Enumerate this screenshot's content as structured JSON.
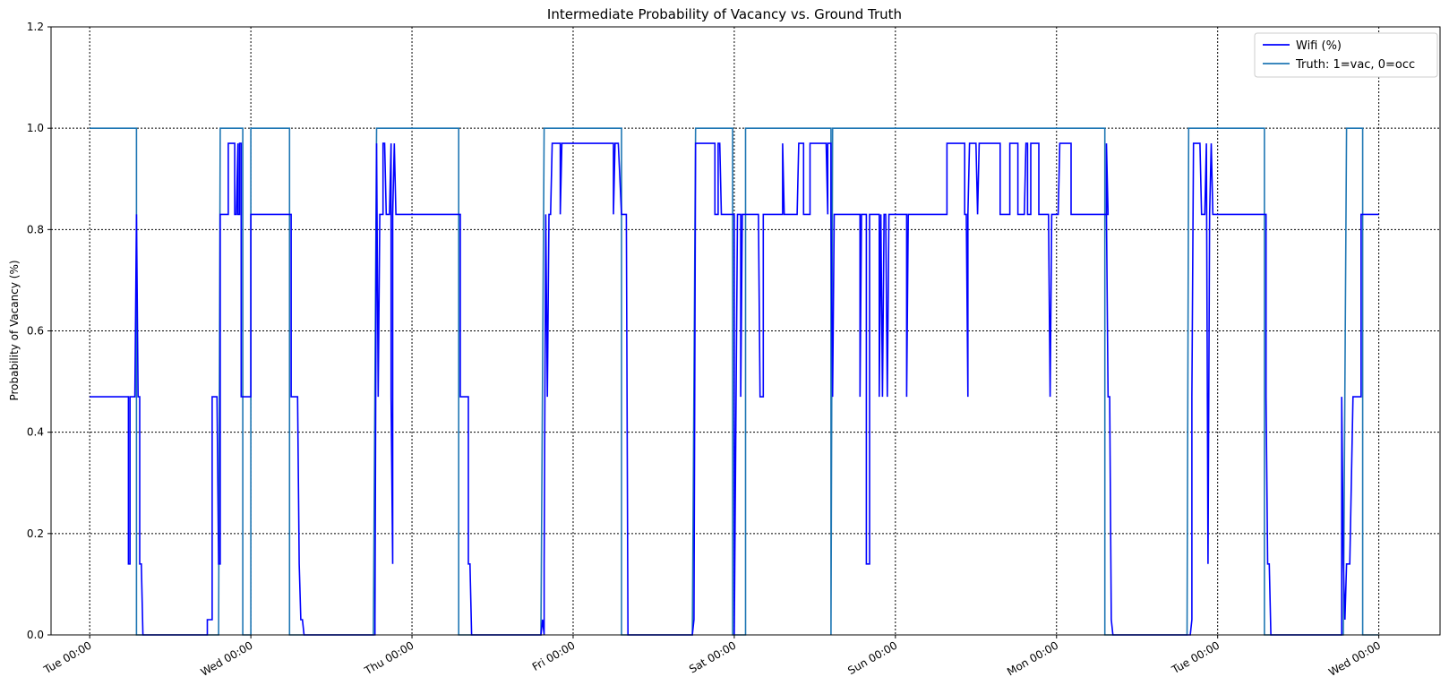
{
  "chart_data": {
    "type": "line",
    "title": "Intermediate Probability of Vacancy vs. Ground Truth",
    "ylabel": "Probability of Vacancy (%)",
    "xlabel": "",
    "ylim": [
      0,
      1.2
    ],
    "yticks": [
      "0.0",
      "0.2",
      "0.4",
      "0.6",
      "0.8",
      "1.0",
      "1.2"
    ],
    "x_unit": "day",
    "xlim": [
      -0.24,
      8.38
    ],
    "xticks": [
      {
        "x": 0,
        "label": "Tue 00:00"
      },
      {
        "x": 1,
        "label": "Wed 00:00"
      },
      {
        "x": 2,
        "label": "Thu 00:00"
      },
      {
        "x": 3,
        "label": "Fri 00:00"
      },
      {
        "x": 4,
        "label": "Sat 00:00"
      },
      {
        "x": 5,
        "label": "Sun 00:00"
      },
      {
        "x": 6,
        "label": "Mon 00:00"
      },
      {
        "x": 7,
        "label": "Tue 00:00"
      },
      {
        "x": 8,
        "label": "Wed 00:00"
      }
    ],
    "grid": true,
    "legend_position": "top-right",
    "series": [
      {
        "name": "Wifi (%)",
        "color": "#0000ff",
        "points": [
          [
            0.0,
            0.47
          ],
          [
            0.24,
            0.47
          ],
          [
            0.24,
            0.14
          ],
          [
            0.25,
            0.14
          ],
          [
            0.25,
            0.47
          ],
          [
            0.28,
            0.47
          ],
          [
            0.29,
            0.83
          ],
          [
            0.3,
            0.47
          ],
          [
            0.31,
            0.47
          ],
          [
            0.31,
            0.14
          ],
          [
            0.32,
            0.14
          ],
          [
            0.33,
            0.0
          ],
          [
            0.72,
            0.0
          ],
          [
            0.73,
            0.0
          ],
          [
            0.73,
            0.03
          ],
          [
            0.76,
            0.03
          ],
          [
            0.76,
            0.47
          ],
          [
            0.79,
            0.47
          ],
          [
            0.8,
            0.14
          ],
          [
            0.81,
            0.14
          ],
          [
            0.81,
            0.83
          ],
          [
            0.86,
            0.83
          ],
          [
            0.86,
            0.97
          ],
          [
            0.9,
            0.97
          ],
          [
            0.9,
            0.83
          ],
          [
            0.91,
            0.83
          ],
          [
            0.92,
            0.97
          ],
          [
            0.92,
            0.83
          ],
          [
            0.93,
            0.83
          ],
          [
            0.93,
            0.97
          ],
          [
            0.94,
            0.97
          ],
          [
            0.94,
            0.47
          ],
          [
            1.0,
            0.47
          ],
          [
            1.0,
            0.83
          ],
          [
            1.25,
            0.83
          ],
          [
            1.25,
            0.47
          ],
          [
            1.29,
            0.47
          ],
          [
            1.3,
            0.14
          ],
          [
            1.31,
            0.03
          ],
          [
            1.32,
            0.03
          ],
          [
            1.33,
            0.0
          ],
          [
            1.77,
            0.0
          ],
          [
            1.77,
            0.03
          ],
          [
            1.78,
            0.97
          ],
          [
            1.79,
            0.47
          ],
          [
            1.8,
            0.83
          ],
          [
            1.82,
            0.83
          ],
          [
            1.82,
            0.97
          ],
          [
            1.83,
            0.97
          ],
          [
            1.84,
            0.83
          ],
          [
            1.86,
            0.83
          ],
          [
            1.87,
            0.97
          ],
          [
            1.87,
            0.47
          ],
          [
            1.88,
            0.14
          ],
          [
            1.88,
            0.83
          ],
          [
            1.89,
            0.97
          ],
          [
            1.9,
            0.83
          ],
          [
            2.3,
            0.83
          ],
          [
            2.3,
            0.47
          ],
          [
            2.35,
            0.47
          ],
          [
            2.35,
            0.14
          ],
          [
            2.36,
            0.14
          ],
          [
            2.37,
            0.0
          ],
          [
            2.8,
            0.0
          ],
          [
            2.81,
            0.03
          ],
          [
            2.82,
            0.0
          ],
          [
            2.82,
            0.14
          ],
          [
            2.83,
            0.83
          ],
          [
            2.84,
            0.47
          ],
          [
            2.85,
            0.83
          ],
          [
            2.86,
            0.83
          ],
          [
            2.87,
            0.97
          ],
          [
            2.92,
            0.97
          ],
          [
            2.92,
            0.83
          ],
          [
            2.93,
            0.97
          ],
          [
            3.25,
            0.97
          ],
          [
            3.25,
            0.83
          ],
          [
            3.26,
            0.97
          ],
          [
            3.28,
            0.97
          ],
          [
            3.3,
            0.83
          ],
          [
            3.33,
            0.83
          ],
          [
            3.34,
            0.0
          ],
          [
            3.74,
            0.0
          ],
          [
            3.75,
            0.03
          ],
          [
            3.76,
            0.97
          ],
          [
            3.88,
            0.97
          ],
          [
            3.88,
            0.83
          ],
          [
            3.9,
            0.83
          ],
          [
            3.9,
            0.97
          ],
          [
            3.91,
            0.97
          ],
          [
            3.92,
            0.83
          ],
          [
            4.0,
            0.83
          ],
          [
            4.0,
            0.0
          ],
          [
            4.02,
            0.83
          ],
          [
            4.04,
            0.83
          ],
          [
            4.04,
            0.47
          ],
          [
            4.05,
            0.83
          ],
          [
            4.15,
            0.83
          ],
          [
            4.16,
            0.47
          ],
          [
            4.18,
            0.47
          ],
          [
            4.18,
            0.83
          ],
          [
            4.3,
            0.83
          ],
          [
            4.3,
            0.97
          ],
          [
            4.31,
            0.83
          ],
          [
            4.39,
            0.83
          ],
          [
            4.4,
            0.97
          ],
          [
            4.43,
            0.97
          ],
          [
            4.43,
            0.83
          ],
          [
            4.47,
            0.83
          ],
          [
            4.47,
            0.97
          ],
          [
            4.57,
            0.97
          ],
          [
            4.58,
            0.83
          ],
          [
            4.58,
            0.97
          ],
          [
            4.6,
            0.97
          ],
          [
            4.6,
            0.83
          ],
          [
            4.61,
            0.47
          ],
          [
            4.62,
            0.83
          ],
          [
            4.78,
            0.83
          ],
          [
            4.78,
            0.47
          ],
          [
            4.79,
            0.83
          ],
          [
            4.82,
            0.83
          ],
          [
            4.82,
            0.14
          ],
          [
            4.84,
            0.14
          ],
          [
            4.84,
            0.83
          ],
          [
            4.9,
            0.83
          ],
          [
            4.9,
            0.47
          ],
          [
            4.91,
            0.83
          ],
          [
            4.92,
            0.47
          ],
          [
            4.93,
            0.83
          ],
          [
            4.94,
            0.83
          ],
          [
            4.95,
            0.47
          ],
          [
            4.96,
            0.83
          ],
          [
            5.07,
            0.83
          ],
          [
            5.07,
            0.47
          ],
          [
            5.08,
            0.83
          ],
          [
            5.32,
            0.83
          ],
          [
            5.32,
            0.97
          ],
          [
            5.43,
            0.97
          ],
          [
            5.43,
            0.83
          ],
          [
            5.44,
            0.83
          ],
          [
            5.45,
            0.47
          ],
          [
            5.45,
            0.83
          ],
          [
            5.46,
            0.97
          ],
          [
            5.5,
            0.97
          ],
          [
            5.51,
            0.83
          ],
          [
            5.52,
            0.97
          ],
          [
            5.65,
            0.97
          ],
          [
            5.65,
            0.83
          ],
          [
            5.71,
            0.83
          ],
          [
            5.71,
            0.97
          ],
          [
            5.76,
            0.97
          ],
          [
            5.76,
            0.83
          ],
          [
            5.8,
            0.83
          ],
          [
            5.81,
            0.97
          ],
          [
            5.82,
            0.97
          ],
          [
            5.82,
            0.83
          ],
          [
            5.84,
            0.83
          ],
          [
            5.84,
            0.97
          ],
          [
            5.89,
            0.97
          ],
          [
            5.89,
            0.83
          ],
          [
            5.95,
            0.83
          ],
          [
            5.96,
            0.47
          ],
          [
            5.97,
            0.83
          ],
          [
            6.01,
            0.83
          ],
          [
            6.02,
            0.97
          ],
          [
            6.09,
            0.97
          ],
          [
            6.09,
            0.83
          ],
          [
            6.31,
            0.83
          ],
          [
            6.31,
            0.97
          ],
          [
            6.32,
            0.83
          ],
          [
            6.31,
            0.83
          ],
          [
            6.32,
            0.47
          ],
          [
            6.33,
            0.47
          ],
          [
            6.34,
            0.03
          ],
          [
            6.35,
            0.0
          ],
          [
            6.83,
            0.0
          ],
          [
            6.84,
            0.03
          ],
          [
            6.84,
            0.47
          ],
          [
            6.85,
            0.97
          ],
          [
            6.89,
            0.97
          ],
          [
            6.9,
            0.83
          ],
          [
            6.92,
            0.83
          ],
          [
            6.93,
            0.97
          ],
          [
            6.94,
            0.14
          ],
          [
            6.95,
            0.83
          ],
          [
            6.96,
            0.97
          ],
          [
            6.97,
            0.83
          ],
          [
            7.3,
            0.83
          ],
          [
            7.3,
            0.47
          ],
          [
            7.31,
            0.14
          ],
          [
            7.32,
            0.14
          ],
          [
            7.33,
            0.0
          ],
          [
            7.77,
            0.0
          ],
          [
            7.77,
            0.47
          ],
          [
            7.78,
            0.14
          ],
          [
            7.79,
            0.03
          ],
          [
            7.8,
            0.14
          ],
          [
            7.81,
            0.14
          ],
          [
            7.82,
            0.14
          ],
          [
            7.84,
            0.47
          ],
          [
            7.89,
            0.47
          ],
          [
            7.89,
            0.83
          ],
          [
            8.0,
            0.83
          ]
        ]
      },
      {
        "name": "Truth: 1=vac, 0=occ",
        "color": "#1f77b4",
        "points": [
          [
            0.0,
            1.0
          ],
          [
            0.29,
            1.0
          ],
          [
            0.29,
            0.0
          ],
          [
            0.8,
            0.0
          ],
          [
            0.81,
            1.0
          ],
          [
            0.95,
            1.0
          ],
          [
            0.95,
            0.0
          ],
          [
            1.0,
            0.0
          ],
          [
            1.0,
            1.0
          ],
          [
            1.24,
            1.0
          ],
          [
            1.24,
            0.0
          ],
          [
            1.76,
            0.0
          ],
          [
            1.78,
            1.0
          ],
          [
            2.29,
            1.0
          ],
          [
            2.29,
            0.0
          ],
          [
            2.8,
            0.0
          ],
          [
            2.82,
            1.0
          ],
          [
            3.3,
            1.0
          ],
          [
            3.3,
            0.0
          ],
          [
            3.74,
            0.0
          ],
          [
            3.76,
            1.0
          ],
          [
            3.99,
            1.0
          ],
          [
            3.99,
            0.0
          ],
          [
            4.07,
            0.0
          ],
          [
            4.07,
            1.0
          ],
          [
            4.6,
            1.0
          ],
          [
            4.6,
            0.0
          ],
          [
            4.61,
            1.0
          ],
          [
            6.3,
            1.0
          ],
          [
            6.3,
            0.0
          ],
          [
            6.81,
            0.0
          ],
          [
            6.82,
            1.0
          ],
          [
            7.29,
            1.0
          ],
          [
            7.29,
            0.0
          ],
          [
            7.78,
            0.0
          ],
          [
            7.8,
            1.0
          ],
          [
            7.9,
            1.0
          ],
          [
            7.9,
            0.0
          ],
          [
            8.0,
            0.0
          ]
        ]
      }
    ]
  }
}
